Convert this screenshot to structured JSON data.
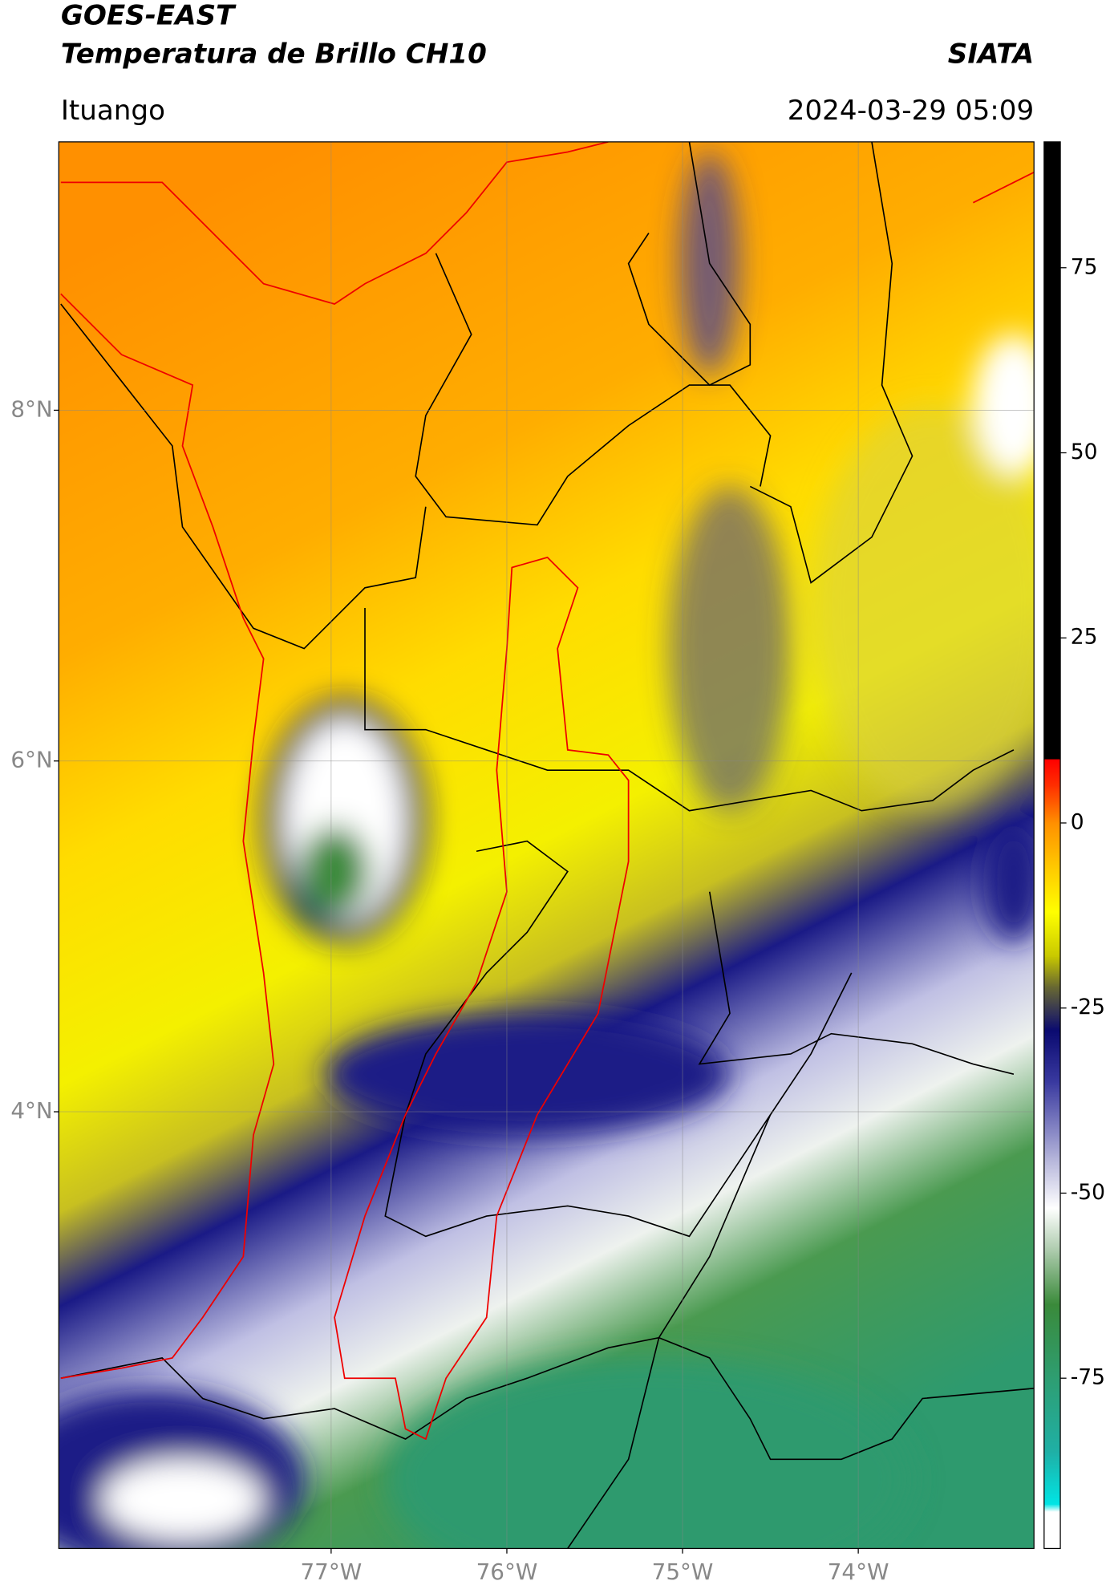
{
  "header": {
    "title": "GOES-EAST",
    "subtitle": "Temperatura de Brillo CH10",
    "source": "SIATA",
    "location": "Ituango",
    "datetime": "2024-03-29 05:09"
  },
  "chart_data": {
    "type": "map",
    "xlim": [
      -78.55,
      -73.0
    ],
    "ylim": [
      1.51,
      9.53
    ],
    "xticks": [
      {
        "value": -77,
        "label": "77°W"
      },
      {
        "value": -76,
        "label": "76°W"
      },
      {
        "value": -75,
        "label": "75°W"
      },
      {
        "value": -74,
        "label": "74°W"
      }
    ],
    "yticks": [
      {
        "value": 8,
        "label": "8°N"
      },
      {
        "value": 6,
        "label": "6°N"
      },
      {
        "value": 4,
        "label": "4°N"
      }
    ],
    "grid": true,
    "colorbar": {
      "lim": [
        -98,
        92
      ],
      "ticks": [
        75,
        50,
        25,
        0,
        -25,
        -50,
        -75
      ],
      "colormap": [
        {
          "value": -98,
          "color": "#ffffff"
        },
        {
          "value": -93,
          "color": "#ffffff"
        },
        {
          "value": -92,
          "color": "#00e5e5"
        },
        {
          "value": -85,
          "color": "#1fb0a6"
        },
        {
          "value": -75,
          "color": "#2e9e72"
        },
        {
          "value": -65,
          "color": "#3a8a3a"
        },
        {
          "value": -58,
          "color": "#a8c8a8"
        },
        {
          "value": -52,
          "color": "#ffffff"
        },
        {
          "value": -45,
          "color": "#b0b0d8"
        },
        {
          "value": -35,
          "color": "#3a3aa0"
        },
        {
          "value": -28,
          "color": "#0a0a70"
        },
        {
          "value": -22,
          "color": "#6b6b30"
        },
        {
          "value": -18,
          "color": "#c8c800"
        },
        {
          "value": -12,
          "color": "#ffff00"
        },
        {
          "value": -5,
          "color": "#ffc000"
        },
        {
          "value": 0,
          "color": "#ff9000"
        },
        {
          "value": 5,
          "color": "#ff3000"
        },
        {
          "value": 8.6,
          "color": "#ff0000"
        },
        {
          "value": 8.7,
          "color": "#000000"
        },
        {
          "value": 92,
          "color": "#000000"
        }
      ]
    }
  }
}
